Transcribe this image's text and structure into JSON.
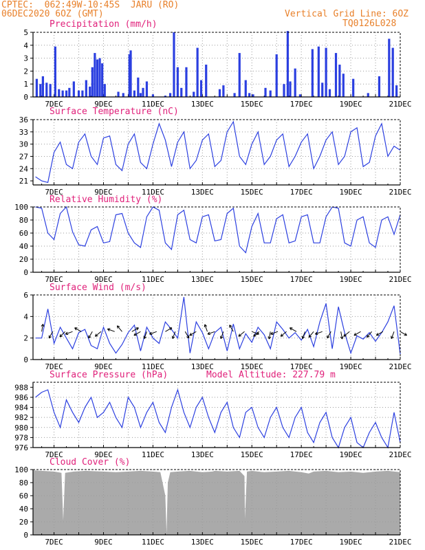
{
  "header": {
    "line1": "CPTEC:  062:49W-10:45S  JARU (RO)",
    "line2": "06DEC2020 6OZ (GMT)",
    "grid_note": "Vertical Grid Line: 6OZ",
    "code": "TQ0126L028"
  },
  "colors": {
    "header": "#e8802a",
    "title": "#e0207a",
    "series": "#2b3fe0",
    "cloud": "#aaaaaa",
    "grid": "#999999"
  },
  "x_labels": [
    "7DEC",
    "9DEC",
    "11DEC",
    "13DEC",
    "15DEC",
    "17DEC",
    "19DEC",
    "21DEC"
  ],
  "chart_data": [
    {
      "type": "bar",
      "title": "Precipitation (mm/h)",
      "ylim": [
        0,
        5
      ],
      "yticks": [
        "0",
        "1",
        "2",
        "3",
        "4",
        "5"
      ],
      "x_days": [
        6.3,
        6.45,
        6.55,
        6.7,
        6.85,
        7.05,
        7.2,
        7.35,
        7.5,
        7.62,
        7.8,
        8.0,
        8.15,
        8.3,
        8.45,
        8.55,
        8.65,
        8.75,
        8.85,
        8.95,
        9.05,
        9.6,
        9.8,
        10.05,
        10.1,
        10.25,
        10.4,
        10.5,
        10.6,
        10.75,
        11.0,
        11.5,
        11.7,
        11.85,
        12.0,
        12.15,
        12.35,
        12.65,
        12.8,
        12.95,
        13.15,
        13.7,
        13.85,
        14.3,
        14.5,
        14.75,
        14.9,
        15.05,
        15.55,
        15.75,
        16.0,
        16.3,
        16.45,
        16.55,
        16.75,
        16.95,
        17.45,
        17.7,
        17.85,
        18.0,
        18.15,
        18.4,
        18.55,
        18.7,
        19.1,
        19.7,
        20.15,
        20.55,
        20.7,
        20.85
      ],
      "values": [
        1.4,
        1.0,
        1.6,
        1.1,
        1.0,
        3.9,
        0.6,
        0.5,
        0.5,
        0.7,
        1.2,
        0.5,
        0.5,
        1.3,
        0.8,
        2.3,
        3.4,
        2.9,
        3.0,
        2.6,
        1.0,
        0.4,
        0.3,
        3.3,
        3.6,
        0.5,
        1.5,
        0.3,
        0.7,
        1.2,
        0.2,
        0.1,
        0.3,
        5.0,
        2.3,
        0.7,
        2.3,
        0.4,
        3.8,
        1.3,
        2.5,
        0.6,
        0.9,
        0.3,
        3.4,
        1.3,
        0.3,
        0.2,
        0.7,
        0.5,
        3.3,
        1.0,
        5.1,
        1.2,
        2.2,
        0.2,
        3.7,
        3.9,
        1.1,
        3.8,
        0.6,
        3.4,
        2.5,
        1.8,
        1.4,
        0.3,
        1.6,
        4.5,
        3.8,
        0.9
      ]
    },
    {
      "type": "line",
      "title": "Surface Temperature (nC)",
      "ylim": [
        20,
        36
      ],
      "yticks": [
        "21",
        "24",
        "27",
        "30",
        "33",
        "36"
      ],
      "x_days": [
        6.25,
        6.5,
        6.75,
        7.0,
        7.25,
        7.5,
        7.75,
        8.0,
        8.25,
        8.5,
        8.75,
        9.0,
        9.25,
        9.5,
        9.75,
        10.0,
        10.25,
        10.5,
        10.75,
        11.0,
        11.25,
        11.5,
        11.75,
        12.0,
        12.25,
        12.5,
        12.75,
        13.0,
        13.25,
        13.5,
        13.75,
        14.0,
        14.25,
        14.5,
        14.75,
        15.0,
        15.25,
        15.5,
        15.75,
        16.0,
        16.25,
        16.5,
        16.75,
        17.0,
        17.25,
        17.5,
        17.75,
        18.0,
        18.25,
        18.5,
        18.75,
        19.0,
        19.25,
        19.5,
        19.75,
        20.0,
        20.25,
        20.5,
        20.75,
        21.0
      ],
      "values": [
        22,
        21,
        20.6,
        28,
        30.5,
        25,
        24,
        30.5,
        32.5,
        27,
        25,
        31.5,
        32,
        25,
        23.5,
        30,
        32.5,
        25.5,
        24,
        30,
        35,
        31,
        24.5,
        30.5,
        33,
        24,
        26,
        31,
        32.5,
        24.5,
        26,
        33,
        35.5,
        27,
        25,
        30,
        33,
        25,
        27,
        31,
        32.5,
        24.5,
        27,
        30.5,
        32.5,
        24,
        27,
        31,
        33,
        25,
        27,
        33,
        34,
        24.5,
        25.5,
        32,
        35,
        27,
        29.5,
        28.5
      ]
    },
    {
      "type": "line",
      "title": "Relative Humidity (%)",
      "ylim": [
        0,
        100
      ],
      "yticks": [
        "0",
        "20",
        "40",
        "60",
        "80",
        "100"
      ],
      "x_days": [
        6.25,
        6.5,
        6.75,
        7.0,
        7.25,
        7.5,
        7.75,
        8.0,
        8.25,
        8.5,
        8.75,
        9.0,
        9.25,
        9.5,
        9.75,
        10.0,
        10.25,
        10.5,
        10.75,
        11.0,
        11.25,
        11.5,
        11.75,
        12.0,
        12.25,
        12.5,
        12.75,
        13.0,
        13.25,
        13.5,
        13.75,
        14.0,
        14.25,
        14.5,
        14.75,
        15.0,
        15.25,
        15.5,
        15.75,
        16.0,
        16.25,
        16.5,
        16.75,
        17.0,
        17.25,
        17.5,
        17.75,
        18.0,
        18.25,
        18.5,
        18.75,
        19.0,
        19.25,
        19.5,
        19.75,
        20.0,
        20.25,
        20.5,
        20.75,
        21.0
      ],
      "values": [
        100,
        98,
        60,
        50,
        90,
        100,
        62,
        42,
        40,
        65,
        70,
        45,
        47,
        88,
        90,
        60,
        45,
        38,
        85,
        100,
        95,
        45,
        35,
        88,
        95,
        50,
        45,
        85,
        88,
        48,
        50,
        90,
        98,
        40,
        30,
        70,
        90,
        45,
        45,
        82,
        88,
        45,
        48,
        85,
        88,
        45,
        45,
        85,
        100,
        98,
        45,
        40,
        80,
        85,
        45,
        38,
        80,
        85,
        58,
        88
      ]
    },
    {
      "type": "line",
      "title": "Surface Wind (m/s)",
      "ylim": [
        0,
        6
      ],
      "yticks": [
        "0",
        "2",
        "4",
        "6"
      ],
      "x_days": [
        6.25,
        6.5,
        6.75,
        7.0,
        7.25,
        7.5,
        7.75,
        8.0,
        8.25,
        8.5,
        8.75,
        9.0,
        9.25,
        9.5,
        9.75,
        10.0,
        10.25,
        10.5,
        10.75,
        11.0,
        11.25,
        11.5,
        11.75,
        12.0,
        12.25,
        12.5,
        12.75,
        13.0,
        13.25,
        13.5,
        13.75,
        14.0,
        14.25,
        14.5,
        14.75,
        15.0,
        15.25,
        15.5,
        15.75,
        16.0,
        16.25,
        16.5,
        16.75,
        17.0,
        17.25,
        17.5,
        17.75,
        18.0,
        18.25,
        18.5,
        18.75,
        19.0,
        19.25,
        19.5,
        19.75,
        20.0,
        20.25,
        20.5,
        20.75,
        21.0
      ],
      "values": [
        2.0,
        2.0,
        4.7,
        1.5,
        3.0,
        2.0,
        1.0,
        2.5,
        2.8,
        1.3,
        1.0,
        3.0,
        1.5,
        0.6,
        1.4,
        2.5,
        3.2,
        0.8,
        3.0,
        2.0,
        1.5,
        3.5,
        2.8,
        2.0,
        5.8,
        0.6,
        3.5,
        2.5,
        1.0,
        2.5,
        3.0,
        0.8,
        3.3,
        1.0,
        2.4,
        1.6,
        3.0,
        2.3,
        1.0,
        3.5,
        2.8,
        2.0,
        2.5,
        1.8,
        2.8,
        1.2,
        3.5,
        5.2,
        1.0,
        4.9,
        2.5,
        0.6,
        2.2,
        1.9,
        2.5,
        1.7,
        2.5,
        3.5,
        5.0,
        0.5
      ]
    },
    {
      "type": "line",
      "title": "Surface Pressure (hPa)",
      "annotation": "Model Altitude: 227.79 m",
      "ylim": [
        976,
        989
      ],
      "yticks": [
        "976",
        "978",
        "980",
        "982",
        "984",
        "986",
        "988"
      ],
      "x_days": [
        6.25,
        6.5,
        6.75,
        7.0,
        7.25,
        7.5,
        7.75,
        8.0,
        8.25,
        8.5,
        8.75,
        9.0,
        9.25,
        9.5,
        9.75,
        10.0,
        10.25,
        10.5,
        10.75,
        11.0,
        11.25,
        11.5,
        11.75,
        12.0,
        12.25,
        12.5,
        12.75,
        13.0,
        13.25,
        13.5,
        13.75,
        14.0,
        14.25,
        14.5,
        14.75,
        15.0,
        15.25,
        15.5,
        15.75,
        16.0,
        16.25,
        16.5,
        16.75,
        17.0,
        17.25,
        17.5,
        17.75,
        18.0,
        18.25,
        18.5,
        18.75,
        19.0,
        19.25,
        19.5,
        19.75,
        20.0,
        20.25,
        20.5,
        20.75,
        21.0
      ],
      "values": [
        986,
        987,
        987.5,
        983,
        980,
        985.5,
        983,
        981,
        984,
        986,
        982,
        983,
        985,
        982,
        980,
        986,
        984,
        980,
        983,
        985,
        981,
        979,
        984,
        987.5,
        983,
        980,
        984,
        986,
        982,
        979,
        983,
        985,
        980,
        978,
        983,
        984,
        980,
        978,
        982,
        984,
        980,
        978,
        982,
        984,
        979,
        977,
        981,
        983,
        978,
        976,
        980,
        982,
        977,
        976,
        979,
        981,
        978,
        976,
        983,
        977
      ]
    },
    {
      "type": "area",
      "title": "Cloud Cover (%)",
      "ylim": [
        0,
        100
      ],
      "yticks": [
        "0",
        "20",
        "40",
        "60",
        "80",
        "100"
      ],
      "x_days": [
        6.15,
        6.5,
        7.0,
        7.3,
        7.37,
        7.45,
        7.8,
        8.3,
        9.0,
        9.5,
        10.0,
        10.5,
        11.0,
        11.3,
        11.5,
        11.55,
        11.6,
        11.7,
        12.0,
        12.5,
        13.0,
        13.4,
        13.5,
        14.0,
        14.5,
        14.7,
        14.72,
        14.8,
        15.0,
        15.5,
        16.0,
        16.5,
        17.0,
        17.3,
        17.5,
        18.0,
        18.5,
        19.0,
        19.5,
        20.0,
        20.5,
        21.0
      ],
      "values": [
        99,
        98,
        97,
        95,
        22,
        95,
        97,
        98,
        97,
        96,
        97,
        98,
        97,
        96,
        60,
        2,
        80,
        96,
        97,
        98,
        96,
        97,
        98,
        97,
        98,
        90,
        25,
        97,
        98,
        96,
        97,
        98,
        96,
        94,
        97,
        98,
        96,
        97,
        95,
        97,
        98,
        96
      ]
    }
  ],
  "wind_arrows": [
    {
      "day": 6.5,
      "dir": 80
    },
    {
      "day": 6.95,
      "dir": 240
    },
    {
      "day": 7.45,
      "dir": 225
    },
    {
      "day": 7.75,
      "dir": 200
    },
    {
      "day": 8.1,
      "dir": 150
    },
    {
      "day": 8.55,
      "dir": 240
    },
    {
      "day": 8.9,
      "dir": 220
    },
    {
      "day": 9.45,
      "dir": 160
    },
    {
      "day": 9.75,
      "dir": 130
    },
    {
      "day": 10.15,
      "dir": 30
    },
    {
      "day": 10.5,
      "dir": 210
    },
    {
      "day": 10.75,
      "dir": 250
    },
    {
      "day": 11.15,
      "dir": 200
    },
    {
      "day": 11.5,
      "dir": 30
    },
    {
      "day": 11.9,
      "dir": 250
    },
    {
      "day": 12.3,
      "dir": 300
    },
    {
      "day": 12.75,
      "dir": 210
    },
    {
      "day": 13.2,
      "dir": 110
    },
    {
      "day": 13.5,
      "dir": 200
    },
    {
      "day": 13.85,
      "dir": 250
    },
    {
      "day": 14.25,
      "dir": 120
    },
    {
      "day": 14.7,
      "dir": 220
    },
    {
      "day": 15.0,
      "dir": 340
    },
    {
      "day": 15.3,
      "dir": 220
    },
    {
      "day": 15.75,
      "dir": 260
    },
    {
      "day": 16.05,
      "dir": 200
    },
    {
      "day": 16.4,
      "dir": 220
    },
    {
      "day": 16.8,
      "dir": 150
    },
    {
      "day": 17.15,
      "dir": 250
    },
    {
      "day": 17.5,
      "dir": 230
    },
    {
      "day": 17.85,
      "dir": 200
    },
    {
      "day": 18.2,
      "dir": 240
    },
    {
      "day": 18.6,
      "dir": 280
    },
    {
      "day": 18.95,
      "dir": 220
    },
    {
      "day": 19.4,
      "dir": 210
    },
    {
      "day": 19.85,
      "dir": 230
    },
    {
      "day": 20.3,
      "dir": 210
    },
    {
      "day": 20.75,
      "dir": 250
    },
    {
      "day": 21.0,
      "dir": 330
    }
  ]
}
